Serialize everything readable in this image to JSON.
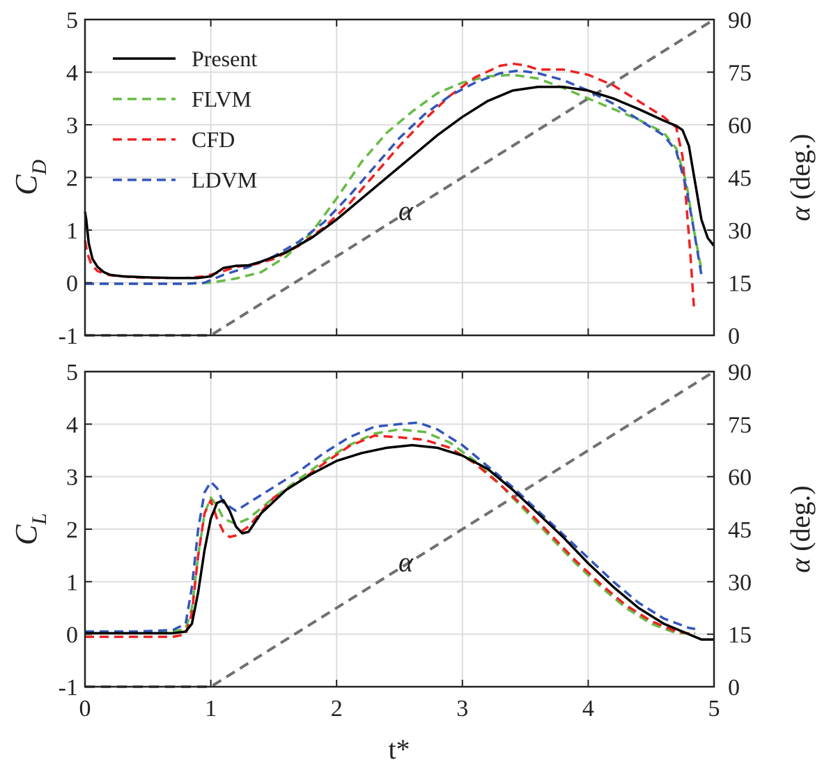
{
  "colors": {
    "present": "#000000",
    "flvm": "#66bb44",
    "cfd": "#ee2222",
    "ldvm": "#3355bb",
    "alpha": "#707070",
    "grid": "#dddddd"
  },
  "xlabel": "t*",
  "chart_data": [
    {
      "type": "line",
      "name": "drag",
      "ylabel_main": "C",
      "ylabel_sub": "D",
      "y2label_sym": "α",
      "y2label_unit": " (deg.)",
      "alpha_label": "α",
      "xlim": [
        0,
        5
      ],
      "ylim": [
        -1,
        5
      ],
      "y2lim": [
        0,
        90
      ],
      "xticks": [
        0,
        1,
        2,
        3,
        4,
        5
      ],
      "yticks": [
        -1,
        0,
        1,
        2,
        3,
        4,
        5
      ],
      "y2ticks": [
        0,
        15,
        30,
        45,
        60,
        75,
        90
      ],
      "grid": true,
      "legend": {
        "position": "top-left",
        "entries": [
          {
            "key": "present",
            "label": "Present"
          },
          {
            "key": "flvm",
            "label": "FLVM"
          },
          {
            "key": "cfd",
            "label": "CFD"
          },
          {
            "key": "ldvm",
            "label": "LDVM"
          }
        ]
      },
      "series": [
        {
          "name": "Present",
          "key": "present",
          "dash": false,
          "x": [
            0,
            0.01,
            0.03,
            0.06,
            0.1,
            0.15,
            0.2,
            0.3,
            0.5,
            0.7,
            0.9,
            1.0,
            1.05,
            1.1,
            1.2,
            1.3,
            1.4,
            1.6,
            1.8,
            2.0,
            2.2,
            2.4,
            2.6,
            2.8,
            3.0,
            3.2,
            3.4,
            3.6,
            3.8,
            4.0,
            4.2,
            4.4,
            4.6,
            4.7,
            4.75,
            4.8,
            4.85,
            4.9,
            4.95,
            5.0
          ],
          "y": [
            1.35,
            1.2,
            0.75,
            0.45,
            0.3,
            0.2,
            0.15,
            0.12,
            0.1,
            0.09,
            0.09,
            0.12,
            0.2,
            0.28,
            0.32,
            0.33,
            0.4,
            0.58,
            0.85,
            1.2,
            1.6,
            2.0,
            2.4,
            2.8,
            3.15,
            3.45,
            3.65,
            3.72,
            3.72,
            3.65,
            3.5,
            3.3,
            3.08,
            2.98,
            2.9,
            2.6,
            1.9,
            1.2,
            0.85,
            0.7
          ]
        },
        {
          "name": "FLVM",
          "key": "flvm",
          "dash": true,
          "x": [
            0,
            0.2,
            0.4,
            0.6,
            0.8,
            1.0,
            1.2,
            1.4,
            1.6,
            1.8,
            2.0,
            2.2,
            2.4,
            2.6,
            2.8,
            3.0,
            3.2,
            3.4,
            3.6,
            3.8,
            4.0,
            4.2,
            4.4,
            4.6,
            4.7,
            4.78,
            4.84,
            4.9
          ],
          "y": [
            -0.02,
            -0.02,
            -0.02,
            -0.02,
            -0.02,
            0.0,
            0.08,
            0.2,
            0.5,
            0.95,
            1.6,
            2.3,
            2.85,
            3.25,
            3.6,
            3.8,
            3.92,
            3.95,
            3.88,
            3.7,
            3.5,
            3.3,
            3.1,
            2.85,
            2.55,
            1.9,
            1.0,
            0.25
          ]
        },
        {
          "name": "CFD",
          "key": "cfd",
          "dash": true,
          "x": [
            0,
            0.02,
            0.05,
            0.1,
            0.2,
            0.4,
            0.6,
            0.8,
            0.95,
            1.1,
            1.2,
            1.35,
            1.5,
            1.7,
            1.9,
            2.1,
            2.3,
            2.5,
            2.7,
            2.9,
            3.1,
            3.3,
            3.4,
            3.5,
            3.6,
            3.8,
            4.0,
            4.2,
            4.4,
            4.6,
            4.7,
            4.75,
            4.78,
            4.81,
            4.84
          ],
          "y": [
            0.8,
            0.55,
            0.35,
            0.22,
            0.14,
            0.1,
            0.09,
            0.09,
            0.12,
            0.22,
            0.3,
            0.35,
            0.45,
            0.7,
            1.05,
            1.5,
            2.05,
            2.6,
            3.1,
            3.55,
            3.9,
            4.12,
            4.16,
            4.13,
            4.05,
            4.05,
            3.95,
            3.75,
            3.45,
            3.15,
            2.95,
            2.4,
            1.5,
            0.6,
            -0.45
          ]
        },
        {
          "name": "LDVM",
          "key": "ldvm",
          "dash": true,
          "x": [
            0,
            0.2,
            0.4,
            0.6,
            0.8,
            0.95,
            1.1,
            1.3,
            1.5,
            1.7,
            1.9,
            2.1,
            2.3,
            2.5,
            2.7,
            2.9,
            3.1,
            3.3,
            3.45,
            3.6,
            3.8,
            4.0,
            4.2,
            4.4,
            4.6,
            4.7,
            4.78,
            4.84,
            4.9
          ],
          "y": [
            -0.02,
            -0.02,
            -0.02,
            -0.02,
            -0.02,
            0.0,
            0.15,
            0.3,
            0.5,
            0.78,
            1.15,
            1.65,
            2.2,
            2.75,
            3.2,
            3.55,
            3.8,
            3.98,
            4.03,
            3.98,
            3.85,
            3.65,
            3.4,
            3.1,
            2.8,
            2.5,
            1.8,
            1.0,
            0.15
          ]
        }
      ],
      "alpha_series": {
        "t": [
          0,
          1,
          5
        ],
        "deg": [
          0,
          0,
          90
        ]
      }
    },
    {
      "type": "line",
      "name": "lift",
      "ylabel_main": "C",
      "ylabel_sub": "L",
      "y2label_sym": "α",
      "y2label_unit": " (deg.)",
      "alpha_label": "α",
      "xlim": [
        0,
        5
      ],
      "ylim": [
        -1,
        5
      ],
      "y2lim": [
        0,
        90
      ],
      "xticks": [
        0,
        1,
        2,
        3,
        4,
        5
      ],
      "yticks": [
        -1,
        0,
        1,
        2,
        3,
        4,
        5
      ],
      "y2ticks": [
        0,
        15,
        30,
        45,
        60,
        75,
        90
      ],
      "grid": true,
      "series": [
        {
          "name": "Present",
          "key": "present",
          "dash": false,
          "x": [
            0,
            0.4,
            0.7,
            0.8,
            0.85,
            0.9,
            0.95,
            1.0,
            1.05,
            1.1,
            1.15,
            1.2,
            1.25,
            1.3,
            1.4,
            1.6,
            1.8,
            2.0,
            2.2,
            2.4,
            2.6,
            2.8,
            3.0,
            3.2,
            3.4,
            3.6,
            3.8,
            4.0,
            4.2,
            4.4,
            4.6,
            4.8,
            4.9,
            5.0
          ],
          "y": [
            0.02,
            0.02,
            0.02,
            0.05,
            0.2,
            0.8,
            1.6,
            2.2,
            2.5,
            2.55,
            2.35,
            2.05,
            1.92,
            1.95,
            2.3,
            2.75,
            3.05,
            3.3,
            3.45,
            3.55,
            3.6,
            3.55,
            3.4,
            3.15,
            2.75,
            2.3,
            1.85,
            1.35,
            0.9,
            0.5,
            0.2,
            0.0,
            -0.1,
            -0.1
          ]
        },
        {
          "name": "FLVM",
          "key": "flvm",
          "dash": true,
          "x": [
            0,
            0.4,
            0.7,
            0.8,
            0.85,
            0.9,
            0.95,
            1.0,
            1.05,
            1.1,
            1.2,
            1.3,
            1.5,
            1.7,
            1.9,
            2.1,
            2.3,
            2.5,
            2.7,
            2.9,
            3.1,
            3.3,
            3.5,
            3.7,
            3.9,
            4.1,
            4.3,
            4.5,
            4.7,
            4.85
          ],
          "y": [
            0.05,
            0.05,
            0.05,
            0.1,
            0.5,
            1.5,
            2.3,
            2.6,
            2.45,
            2.2,
            2.1,
            2.2,
            2.6,
            2.95,
            3.3,
            3.6,
            3.82,
            3.9,
            3.85,
            3.65,
            3.3,
            2.85,
            2.35,
            1.85,
            1.35,
            0.9,
            0.5,
            0.2,
            0.02,
            0.02
          ]
        },
        {
          "name": "CFD",
          "key": "cfd",
          "dash": true,
          "x": [
            0,
            0.4,
            0.7,
            0.8,
            0.85,
            0.9,
            0.95,
            1.0,
            1.05,
            1.1,
            1.15,
            1.2,
            1.3,
            1.5,
            1.7,
            1.9,
            2.1,
            2.3,
            2.5,
            2.7,
            2.9,
            3.1,
            3.3,
            3.5,
            3.7,
            3.9,
            4.1,
            4.3,
            4.5,
            4.7,
            4.85
          ],
          "y": [
            -0.05,
            -0.05,
            -0.05,
            0.0,
            0.4,
            1.5,
            2.3,
            2.55,
            2.2,
            1.95,
            1.85,
            1.88,
            2.05,
            2.6,
            2.9,
            3.25,
            3.58,
            3.78,
            3.75,
            3.7,
            3.55,
            3.25,
            2.85,
            2.4,
            1.9,
            1.4,
            0.95,
            0.55,
            0.25,
            0.05,
            0.0
          ]
        },
        {
          "name": "LDVM",
          "key": "ldvm",
          "dash": true,
          "x": [
            0,
            0.4,
            0.7,
            0.8,
            0.85,
            0.9,
            0.95,
            1.0,
            1.05,
            1.1,
            1.2,
            1.3,
            1.5,
            1.7,
            1.9,
            2.1,
            2.3,
            2.5,
            2.65,
            2.8,
            3.0,
            3.2,
            3.4,
            3.6,
            3.8,
            4.0,
            4.2,
            4.4,
            4.6,
            4.8,
            4.85
          ],
          "y": [
            0.05,
            0.05,
            0.08,
            0.2,
            0.9,
            2.0,
            2.7,
            2.9,
            2.78,
            2.5,
            2.35,
            2.5,
            2.8,
            3.1,
            3.45,
            3.75,
            3.95,
            4.0,
            4.03,
            3.9,
            3.6,
            3.2,
            2.8,
            2.35,
            1.9,
            1.45,
            1.0,
            0.6,
            0.3,
            0.12,
            0.1
          ]
        }
      ],
      "alpha_series": {
        "t": [
          0,
          1,
          5
        ],
        "deg": [
          0,
          0,
          90
        ]
      }
    }
  ]
}
